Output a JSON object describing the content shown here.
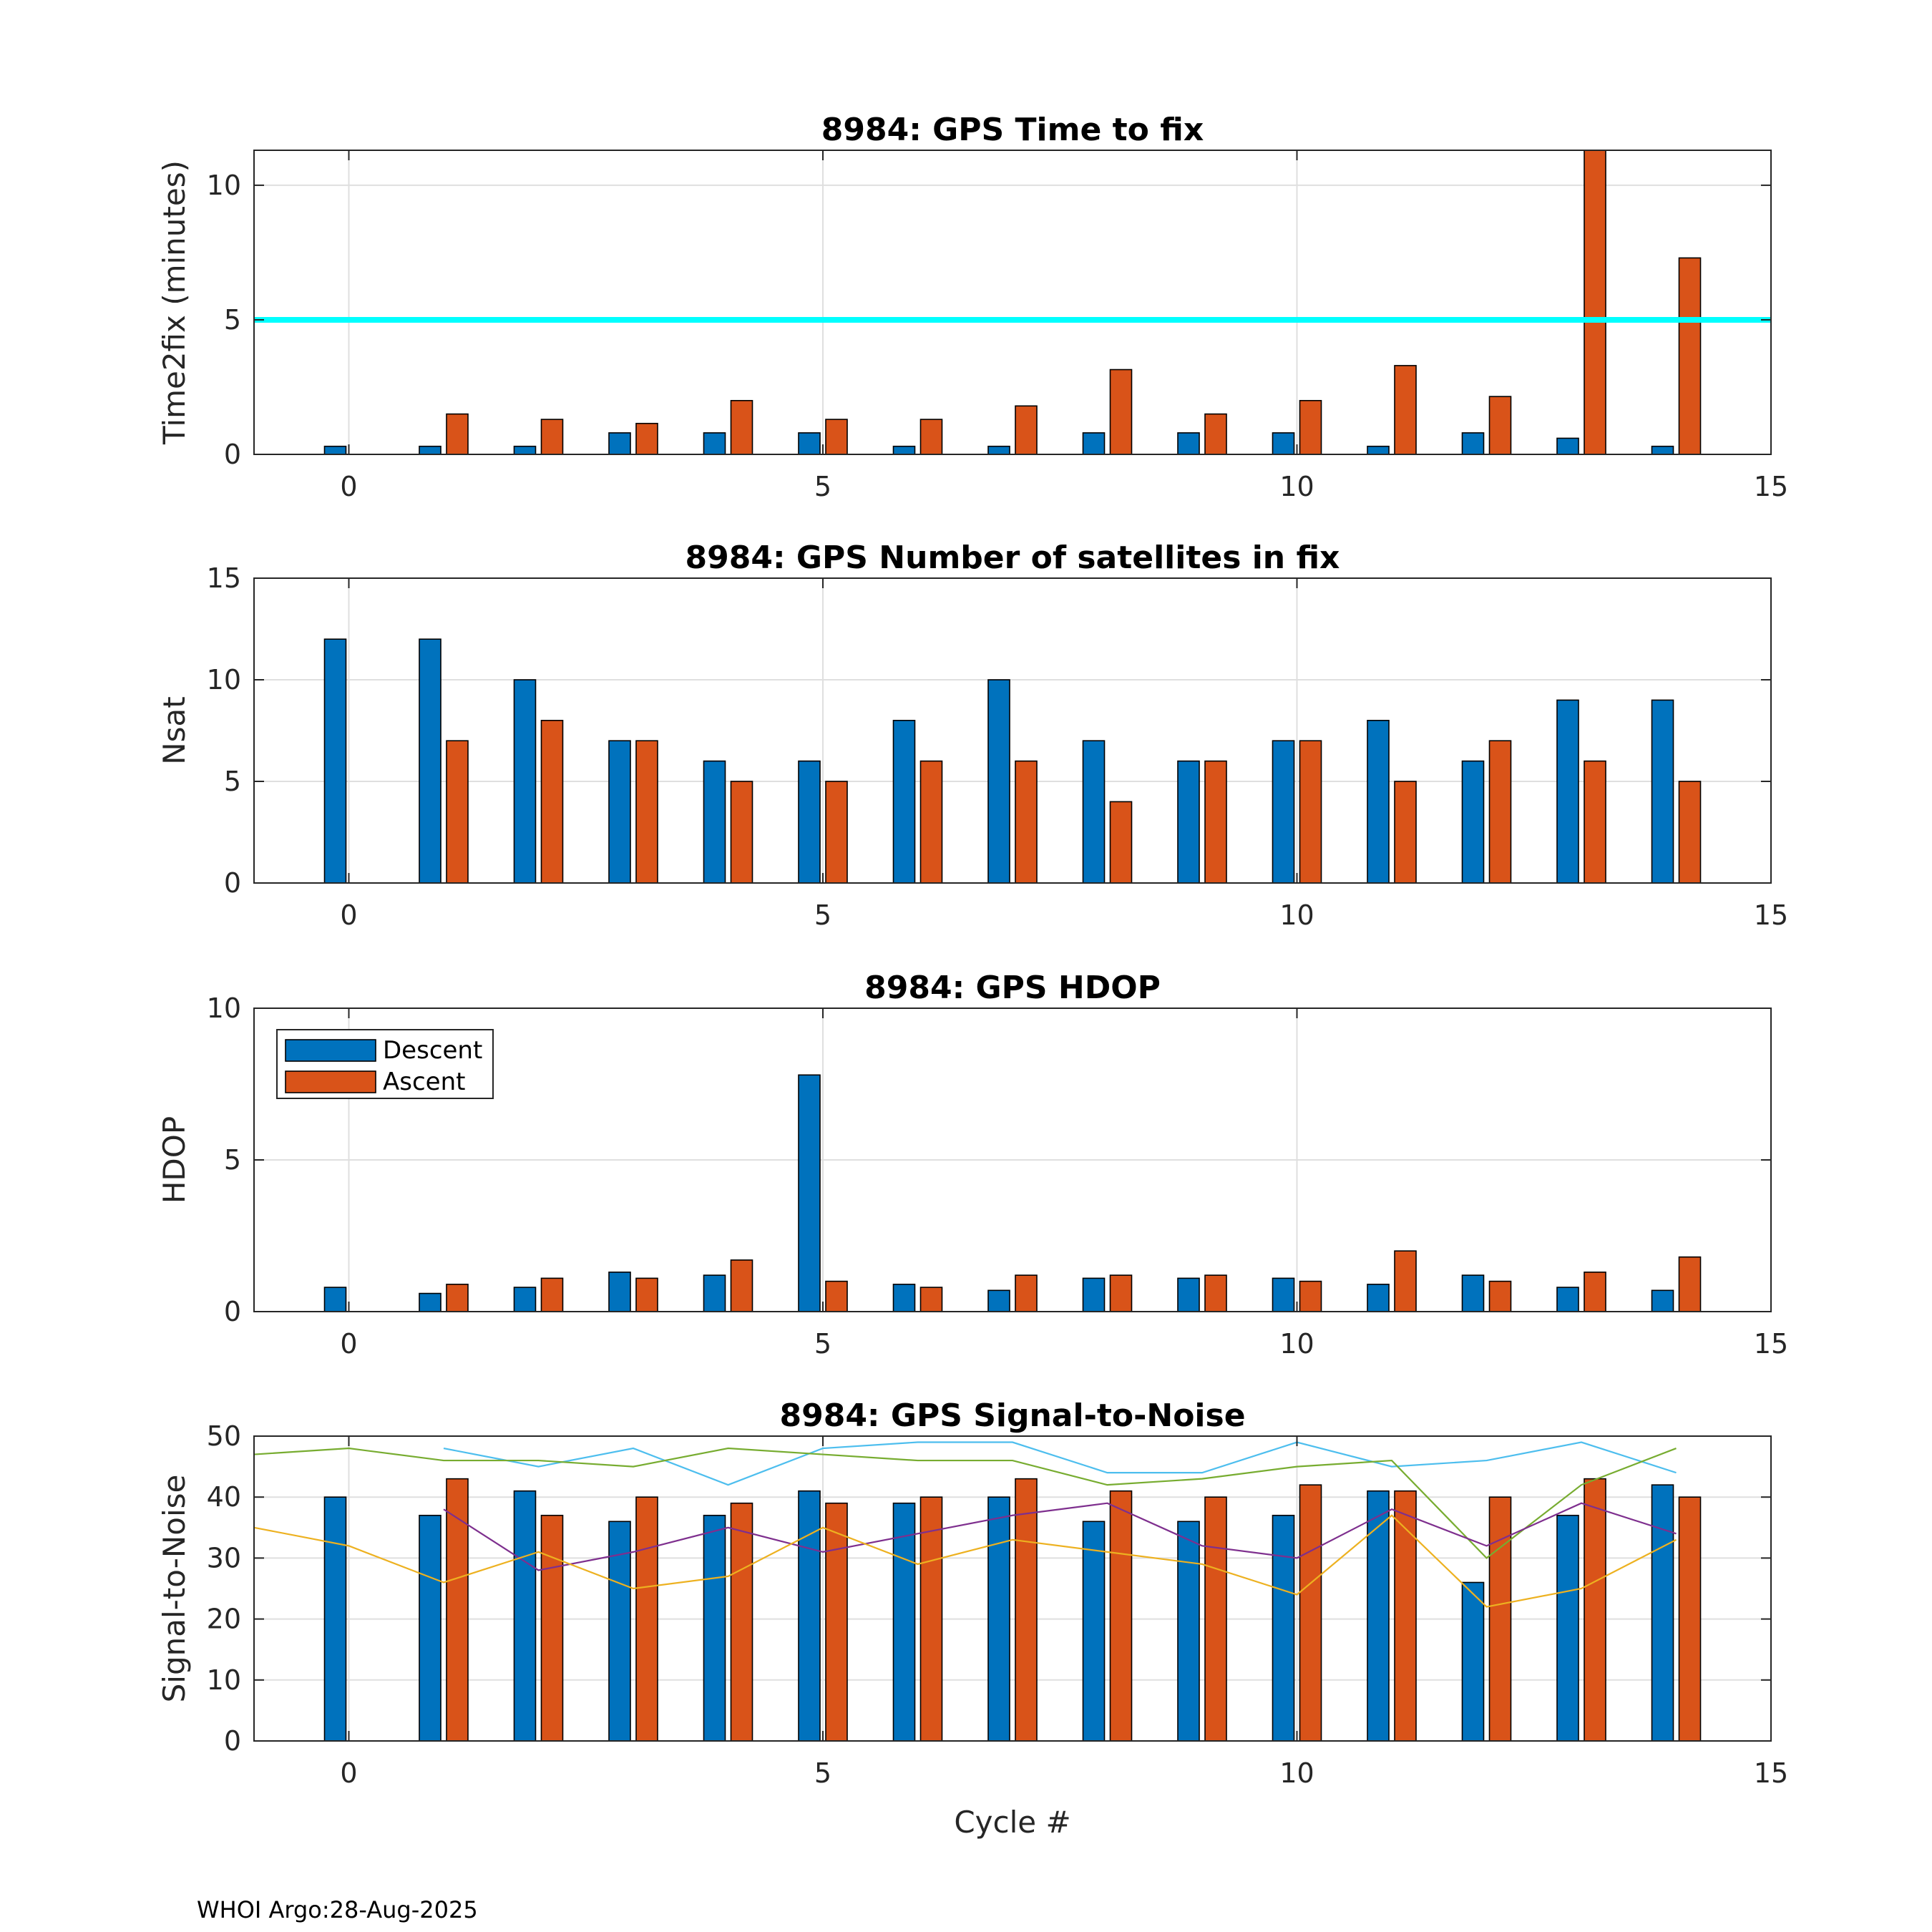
{
  "footer": "WHOI Argo:28-Aug-2025",
  "colors": {
    "descent": "#0072BD",
    "ascent": "#D95319",
    "threshold": "#00FFFF",
    "grid": "#DFDFDF",
    "snr_lines": [
      "#4DBEEE",
      "#77AC30",
      "#7E2F8E",
      "#EDB120"
    ]
  },
  "legend": {
    "descent": "Descent",
    "ascent": "Ascent",
    "location": "top-left"
  },
  "chart_data": [
    {
      "type": "bar",
      "title": "8984: GPS Time to fix",
      "ylabel": "Time2fix (minutes)",
      "xlabel": "",
      "xlim": [
        -1,
        15
      ],
      "ylim": [
        0,
        11.3
      ],
      "xticks": [
        "0",
        "5",
        "10",
        "15"
      ],
      "yticks": [
        "0",
        "5",
        "10"
      ],
      "x": [
        0,
        1,
        2,
        3,
        4,
        5,
        6,
        7,
        8,
        9,
        10,
        11,
        12,
        13,
        14
      ],
      "series": [
        {
          "name": "Descent",
          "values": [
            0.3,
            0.3,
            0.3,
            0.8,
            0.8,
            0.8,
            0.3,
            0.3,
            0.8,
            0.8,
            0.8,
            0.3,
            0.8,
            0.6,
            0.3
          ]
        },
        {
          "name": "Ascent",
          "values": [
            null,
            1.5,
            1.3,
            1.15,
            2.0,
            1.3,
            1.3,
            1.8,
            3.15,
            1.5,
            2.0,
            3.3,
            2.15,
            11.3,
            7.3
          ]
        }
      ],
      "threshold": 5
    },
    {
      "type": "bar",
      "title": "8984: GPS Number of satellites in fix",
      "ylabel": "Nsat",
      "xlabel": "",
      "xlim": [
        -1,
        15
      ],
      "ylim": [
        0,
        15
      ],
      "xticks": [
        "0",
        "5",
        "10",
        "15"
      ],
      "yticks": [
        "0",
        "5",
        "10",
        "15"
      ],
      "x": [
        0,
        1,
        2,
        3,
        4,
        5,
        6,
        7,
        8,
        9,
        10,
        11,
        12,
        13,
        14
      ],
      "series": [
        {
          "name": "Descent",
          "values": [
            12,
            12,
            10,
            7,
            6,
            6,
            8,
            10,
            7,
            6,
            7,
            8,
            6,
            9,
            9
          ]
        },
        {
          "name": "Ascent",
          "values": [
            null,
            7,
            8,
            7,
            5,
            5,
            6,
            6,
            4,
            6,
            7,
            5,
            7,
            6,
            5
          ]
        }
      ]
    },
    {
      "type": "bar",
      "title": "8984: GPS HDOP",
      "ylabel": "HDOP",
      "xlabel": "",
      "xlim": [
        -1,
        15
      ],
      "ylim": [
        0,
        10
      ],
      "xticks": [
        "0",
        "5",
        "10",
        "15"
      ],
      "yticks": [
        "0",
        "5",
        "10"
      ],
      "x": [
        0,
        1,
        2,
        3,
        4,
        5,
        6,
        7,
        8,
        9,
        10,
        11,
        12,
        13,
        14
      ],
      "series": [
        {
          "name": "Descent",
          "values": [
            0.8,
            0.6,
            0.8,
            1.3,
            1.2,
            7.8,
            0.9,
            0.7,
            1.1,
            1.1,
            1.1,
            0.9,
            1.2,
            0.8,
            0.7
          ]
        },
        {
          "name": "Ascent",
          "values": [
            null,
            0.9,
            1.1,
            1.1,
            1.7,
            1.0,
            0.8,
            1.2,
            1.2,
            1.2,
            1.0,
            2.0,
            1.0,
            1.3,
            1.8
          ]
        }
      ],
      "legend": true
    },
    {
      "type": "bar",
      "title": "8984: GPS Signal-to-Noise",
      "ylabel": "Signal-to-Noise",
      "xlabel": "Cycle #",
      "xlim": [
        -1,
        15
      ],
      "ylim": [
        0,
        50
      ],
      "xticks": [
        "0",
        "5",
        "10",
        "15"
      ],
      "yticks": [
        "0",
        "10",
        "20",
        "30",
        "40",
        "50"
      ],
      "x": [
        0,
        1,
        2,
        3,
        4,
        5,
        6,
        7,
        8,
        9,
        10,
        11,
        12,
        13,
        14
      ],
      "series": [
        {
          "name": "Descent",
          "values": [
            40,
            37,
            41,
            36,
            37,
            41,
            39,
            40,
            36,
            36,
            37,
            41,
            26,
            37,
            42
          ]
        },
        {
          "name": "Ascent",
          "values": [
            null,
            43,
            37,
            40,
            39,
            39,
            40,
            43,
            41,
            40,
            42,
            41,
            40,
            43,
            40
          ]
        }
      ],
      "lines": [
        {
          "x": [
            1,
            2,
            3,
            4,
            5,
            6,
            7,
            8,
            9,
            10,
            11,
            12,
            13,
            14
          ],
          "values": [
            48,
            45,
            48,
            42,
            48,
            49,
            49,
            44,
            44,
            49,
            45,
            46,
            49,
            44
          ]
        },
        {
          "x": [
            -1,
            0,
            1,
            2,
            3,
            4,
            5,
            6,
            7,
            8,
            9,
            10,
            11,
            12,
            13,
            14
          ],
          "values": [
            47,
            48,
            46,
            46,
            45,
            48,
            47,
            46,
            46,
            42,
            43,
            45,
            46,
            30,
            42,
            48
          ]
        },
        {
          "x": [
            1,
            2,
            3,
            4,
            5,
            6,
            7,
            8,
            9,
            10,
            11,
            12,
            13,
            14
          ],
          "values": [
            38,
            28,
            31,
            35,
            31,
            34,
            37,
            39,
            32,
            30,
            38,
            32,
            39,
            34
          ]
        },
        {
          "x": [
            -1,
            0,
            1,
            2,
            3,
            4,
            5,
            6,
            7,
            8,
            9,
            10,
            11,
            12,
            13,
            14
          ],
          "values": [
            35,
            32,
            26,
            31,
            25,
            27,
            35,
            29,
            33,
            31,
            29,
            24,
            37,
            22,
            25,
            33
          ]
        }
      ]
    }
  ]
}
